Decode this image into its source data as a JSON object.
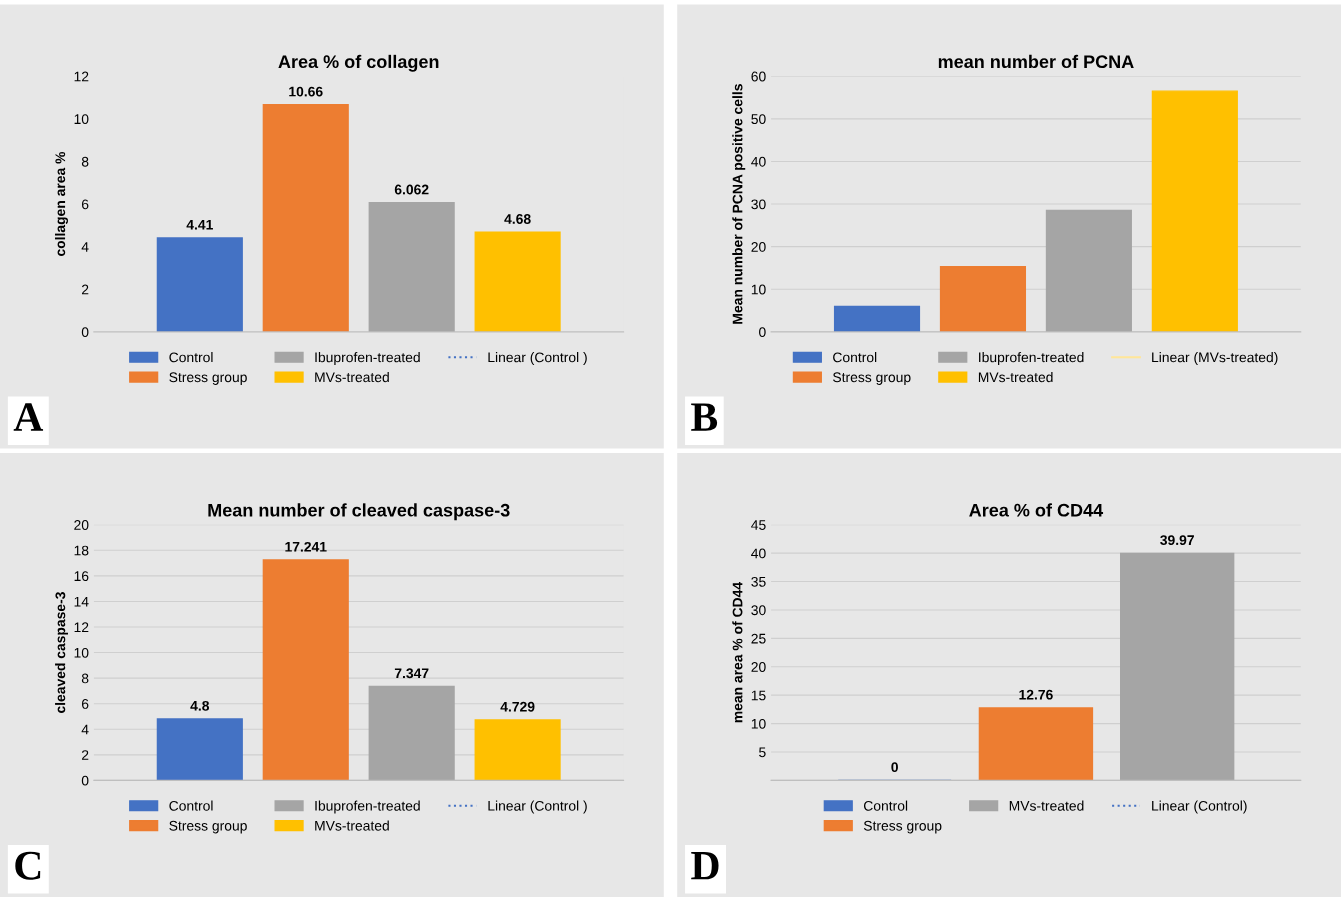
{
  "chart_data": [
    {
      "type": "bar",
      "title": "Area % of collagen",
      "ylabel": "collagen area %",
      "categories": [
        null
      ],
      "ylim": [
        0,
        12
      ],
      "yticks": [
        0,
        2,
        4,
        6,
        8,
        10,
        12
      ],
      "grid": false,
      "legend": "bottom",
      "data_labels": true,
      "tick_labels": "y",
      "annotations": [
        "A"
      ],
      "series": [
        {
          "name": "Control",
          "color": "#4472c4",
          "values": [
            4.41
          ]
        },
        {
          "name": "Stress group",
          "color": "#ed7d31",
          "values": [
            10.66
          ]
        },
        {
          "name": "Ibuprofen-treated",
          "color": "#a5a5a5",
          "values": [
            6.062
          ]
        },
        {
          "name": "MVs-treated",
          "color": "#ffc000",
          "values": [
            4.68
          ]
        },
        {
          "name": "Linear (Control )",
          "type": "line",
          "line_style": "dotted",
          "color": "#4472c4",
          "values": [
            null
          ]
        }
      ]
    },
    {
      "type": "bar",
      "title": "mean number of PCNA",
      "ylabel": "Mean number of PCNA positive cells",
      "categories": [
        null
      ],
      "ylim": [
        0,
        60
      ],
      "yticks": [
        0,
        10,
        20,
        30,
        40,
        50,
        60
      ],
      "grid": "y",
      "legend": "bottom",
      "tick_labels": "y",
      "annotations": [
        "B"
      ],
      "series": [
        {
          "name": "Control",
          "color": "#4472c4",
          "values": [
            6
          ]
        },
        {
          "name": "Stress group",
          "color": "#ed7d31",
          "values": [
            15.3
          ]
        },
        {
          "name": "Ibuprofen-treated",
          "color": "#a5a5a5",
          "values": [
            28.5
          ]
        },
        {
          "name": "MVs-treated",
          "color": "#ffc000",
          "values": [
            56.5
          ]
        },
        {
          "name": "Linear (MVs-treated)",
          "type": "line",
          "line_style": "solid",
          "color": "#ffe699",
          "values": [
            null
          ]
        }
      ]
    },
    {
      "type": "bar",
      "title": "Mean number of cleaved caspase-3",
      "ylabel": "cleaved caspase-3",
      "categories": [
        null
      ],
      "ylim": [
        0,
        20
      ],
      "yticks": [
        0,
        2,
        4,
        6,
        8,
        10,
        12,
        14,
        16,
        18,
        20
      ],
      "grid": "y",
      "legend": "bottom",
      "data_labels": true,
      "tick_labels": "y",
      "annotations": [
        "C"
      ],
      "series": [
        {
          "name": "Control",
          "color": "#4472c4",
          "values": [
            4.8
          ]
        },
        {
          "name": "Stress group",
          "color": "#ed7d31",
          "values": [
            17.241
          ]
        },
        {
          "name": "Ibuprofen-treated",
          "color": "#a5a5a5",
          "values": [
            7.347
          ]
        },
        {
          "name": "MVs-treated",
          "color": "#ffc000",
          "values": [
            4.729
          ]
        },
        {
          "name": "Linear (Control )",
          "type": "line",
          "line_style": "dotted",
          "color": "#4472c4",
          "values": [
            null
          ]
        }
      ]
    },
    {
      "type": "bar",
      "title": "Area % of CD44",
      "ylabel": "mean area % of CD44",
      "categories": [
        null
      ],
      "ylim": [
        0,
        45
      ],
      "yticks": [
        {
          "value": 0,
          "label": null
        },
        5,
        10,
        15,
        20,
        25,
        30,
        35,
        40,
        45
      ],
      "grid": "y",
      "legend": "bottom",
      "data_labels": true,
      "tick_labels": "y",
      "annotations": [
        "D"
      ],
      "series": [
        {
          "name": "Control",
          "color": "#4472c4",
          "values": [
            0
          ]
        },
        {
          "name": "Stress group",
          "color": "#ed7d31",
          "values": [
            12.76
          ]
        },
        {
          "name": "MVs-treated",
          "color": "#a5a5a5",
          "values": [
            39.97
          ]
        },
        {
          "name": "Linear (Control)",
          "type": "line",
          "line_style": "dotted",
          "color": "#4472c4",
          "values": [
            null
          ]
        }
      ]
    }
  ]
}
